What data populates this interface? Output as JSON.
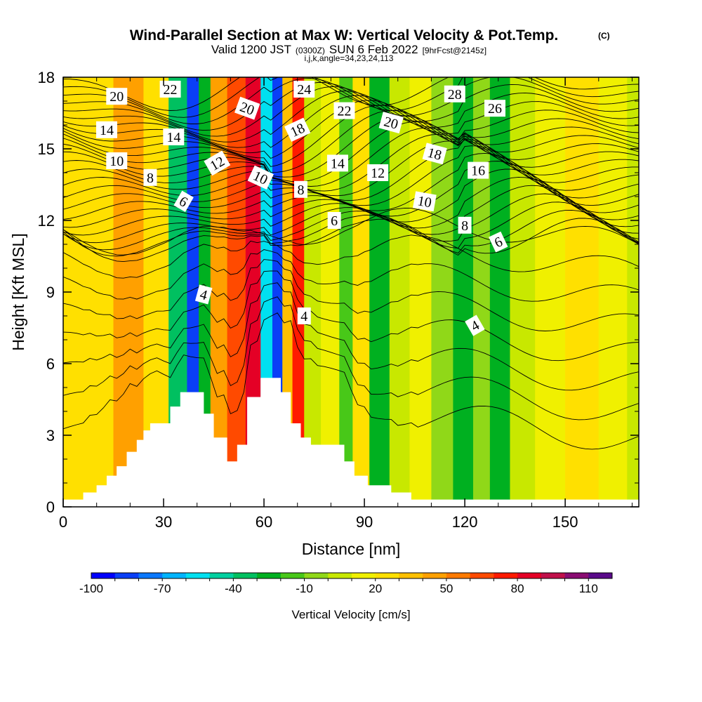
{
  "title": "Wind-Parallel Section at Max W: Vertical Velocity & Pot.Temp.",
  "title_mark": "(C)",
  "subtitle": {
    "valid": "Valid 1200 JST",
    "utc": "(0300Z)",
    "date": "SUN 6 Feb 2022",
    "fcst": "[9hrFcst@2145z]"
  },
  "indices": "i,j,k,angle=34,23,24,113",
  "chart_data": {
    "type": "heatmap",
    "xlabel": "Distance [nm]",
    "ylabel": "Height [Kft MSL]",
    "xlim": [
      0,
      172
    ],
    "ylim": [
      0,
      18
    ],
    "x_ticks": [
      "0",
      "30",
      "60",
      "90",
      "120",
      "150"
    ],
    "y_ticks": [
      "0",
      "3",
      "6",
      "9",
      "12",
      "15",
      "18"
    ],
    "colorbar": {
      "label": "Vertical Velocity [cm/s]",
      "min": -100,
      "max": 120,
      "step": 10,
      "tick_labels": [
        "-100",
        "-70",
        "-40",
        "-10",
        "20",
        "50",
        "80",
        "110"
      ],
      "colors": [
        "#0000ff",
        "#0a3ff7",
        "#0a78ff",
        "#00b4ff",
        "#00e0f0",
        "#00d0a0",
        "#00c060",
        "#00b020",
        "#48c818",
        "#90d818",
        "#c8e800",
        "#f0f000",
        "#ffe000",
        "#ffc000",
        "#ffa000",
        "#ff7a00",
        "#ff4a00",
        "#ff1a00",
        "#e40026",
        "#c0104a",
        "#8a0c72",
        "#5a0a8a"
      ]
    },
    "velocity_bands": [
      {
        "x": 0,
        "value": 20
      },
      {
        "x": 10,
        "value": 28
      },
      {
        "x": 20,
        "value": 40
      },
      {
        "x": 28,
        "value": 25
      },
      {
        "x": 35,
        "value": -40
      },
      {
        "x": 39,
        "value": -85
      },
      {
        "x": 42,
        "value": -30
      },
      {
        "x": 46,
        "value": 40
      },
      {
        "x": 52,
        "value": 60
      },
      {
        "x": 57,
        "value": 80
      },
      {
        "x": 61,
        "value": -60
      },
      {
        "x": 64,
        "value": -90
      },
      {
        "x": 67,
        "value": 30
      },
      {
        "x": 70,
        "value": 75
      },
      {
        "x": 74,
        "value": 5
      },
      {
        "x": 80,
        "value": 15
      },
      {
        "x": 85,
        "value": -20
      },
      {
        "x": 88,
        "value": 20
      },
      {
        "x": 95,
        "value": -30
      },
      {
        "x": 100,
        "value": 5
      },
      {
        "x": 107,
        "value": 15
      },
      {
        "x": 113,
        "value": -10
      },
      {
        "x": 120,
        "value": -25
      },
      {
        "x": 125,
        "value": -5
      },
      {
        "x": 130,
        "value": -25
      },
      {
        "x": 137,
        "value": 0
      },
      {
        "x": 145,
        "value": 15
      },
      {
        "x": 155,
        "value": 28
      },
      {
        "x": 165,
        "value": 15
      },
      {
        "x": 172,
        "value": 5
      }
    ],
    "terrain": [
      [
        0,
        0.3
      ],
      [
        6,
        0.3
      ],
      [
        6,
        0.6
      ],
      [
        10,
        0.6
      ],
      [
        10,
        0.9
      ],
      [
        13,
        0.9
      ],
      [
        13,
        1.3
      ],
      [
        16,
        1.3
      ],
      [
        16,
        1.7
      ],
      [
        19,
        1.7
      ],
      [
        19,
        2.3
      ],
      [
        22,
        2.3
      ],
      [
        22,
        2.8
      ],
      [
        24,
        2.8
      ],
      [
        24,
        3.2
      ],
      [
        26,
        3.2
      ],
      [
        26,
        3.5
      ],
      [
        32,
        3.5
      ],
      [
        32,
        4.2
      ],
      [
        35,
        4.2
      ],
      [
        35,
        4.8
      ],
      [
        42,
        4.8
      ],
      [
        42,
        3.9
      ],
      [
        45,
        3.9
      ],
      [
        45,
        2.9
      ],
      [
        49,
        2.9
      ],
      [
        49,
        1.9
      ],
      [
        52,
        1.9
      ],
      [
        52,
        2.6
      ],
      [
        55,
        2.6
      ],
      [
        55,
        4.6
      ],
      [
        59,
        4.6
      ],
      [
        59,
        5.4
      ],
      [
        65,
        5.4
      ],
      [
        65,
        4.8
      ],
      [
        68,
        4.8
      ],
      [
        68,
        3.5
      ],
      [
        71,
        3.5
      ],
      [
        71,
        2.9
      ],
      [
        74,
        2.9
      ],
      [
        74,
        2.6
      ],
      [
        84,
        2.6
      ],
      [
        84,
        1.9
      ],
      [
        87,
        1.9
      ],
      [
        87,
        1.3
      ],
      [
        91,
        1.3
      ],
      [
        91,
        0.9
      ],
      [
        98,
        0.9
      ],
      [
        98,
        0.6
      ],
      [
        104,
        0.6
      ],
      [
        104,
        0.3
      ],
      [
        172,
        0.3
      ]
    ],
    "contour_labels": [
      {
        "text": "20",
        "x": 16,
        "y": 17.2,
        "rot": 0
      },
      {
        "text": "22",
        "x": 32,
        "y": 17.5,
        "rot": 0
      },
      {
        "text": "24",
        "x": 72,
        "y": 17.5,
        "rot": 0
      },
      {
        "text": "28",
        "x": 117,
        "y": 17.3,
        "rot": 0
      },
      {
        "text": "26",
        "x": 129,
        "y": 16.7,
        "rot": 0
      },
      {
        "text": "20",
        "x": 55,
        "y": 16.7,
        "rot": 20
      },
      {
        "text": "22",
        "x": 84,
        "y": 16.6,
        "rot": 0
      },
      {
        "text": "20",
        "x": 98,
        "y": 16.1,
        "rot": 15
      },
      {
        "text": "14",
        "x": 13,
        "y": 15.8,
        "rot": 0
      },
      {
        "text": "14",
        "x": 33,
        "y": 15.5,
        "rot": 0
      },
      {
        "text": "18",
        "x": 70,
        "y": 15.8,
        "rot": -25
      },
      {
        "text": "18",
        "x": 111,
        "y": 14.8,
        "rot": 15
      },
      {
        "text": "10",
        "x": 16,
        "y": 14.5,
        "rot": 0
      },
      {
        "text": "12",
        "x": 46,
        "y": 14.4,
        "rot": -30
      },
      {
        "text": "14",
        "x": 82,
        "y": 14.4,
        "rot": 0
      },
      {
        "text": "12",
        "x": 94,
        "y": 14.0,
        "rot": 0
      },
      {
        "text": "16",
        "x": 124,
        "y": 14.1,
        "rot": 0
      },
      {
        "text": "8",
        "x": 26,
        "y": 13.8,
        "rot": 0
      },
      {
        "text": "10",
        "x": 59,
        "y": 13.8,
        "rot": 25
      },
      {
        "text": "8",
        "x": 71,
        "y": 13.3,
        "rot": 0
      },
      {
        "text": "6",
        "x": 36,
        "y": 12.8,
        "rot": 30
      },
      {
        "text": "10",
        "x": 108,
        "y": 12.8,
        "rot": 10
      },
      {
        "text": "6",
        "x": 81,
        "y": 12.0,
        "rot": 0
      },
      {
        "text": "8",
        "x": 120,
        "y": 11.8,
        "rot": 0
      },
      {
        "text": "6",
        "x": 130,
        "y": 11.1,
        "rot": -25
      },
      {
        "text": "4",
        "x": 42,
        "y": 8.9,
        "rot": 15
      },
      {
        "text": "4",
        "x": 72,
        "y": 8.0,
        "rot": 0
      },
      {
        "text": "4",
        "x": 123,
        "y": 7.6,
        "rot": -30
      }
    ]
  }
}
